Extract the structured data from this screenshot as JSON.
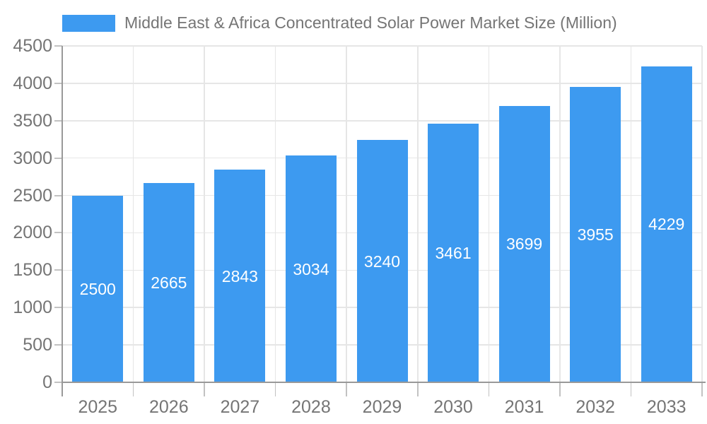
{
  "legend": {
    "label": "Middle East & Africa Concentrated Solar Power Market Size (Million)"
  },
  "chart_data": {
    "type": "bar",
    "title": "Middle East & Africa Concentrated Solar Power Market Size (Million)",
    "categories": [
      "2025",
      "2026",
      "2027",
      "2028",
      "2029",
      "2030",
      "2031",
      "2032",
      "2033"
    ],
    "values": [
      2500,
      2665,
      2843,
      3034,
      3240,
      3461,
      3699,
      3955,
      4229
    ],
    "xlabel": "",
    "ylabel": "",
    "ylim": [
      0,
      4500
    ],
    "yticks": [
      0,
      500,
      1000,
      1500,
      2000,
      2500,
      3000,
      3500,
      4000,
      4500
    ],
    "grid": true,
    "legend_position": "top-left",
    "value_labels": "inside-center",
    "colors": {
      "bar": "#3D9AF0",
      "value_label": "#FFFFFF",
      "axis_label": "#757575",
      "gridline": "#E6E6E6",
      "tick": "#C2C2C2",
      "axis_line": "#999999",
      "background": "#FFFFFF"
    }
  }
}
